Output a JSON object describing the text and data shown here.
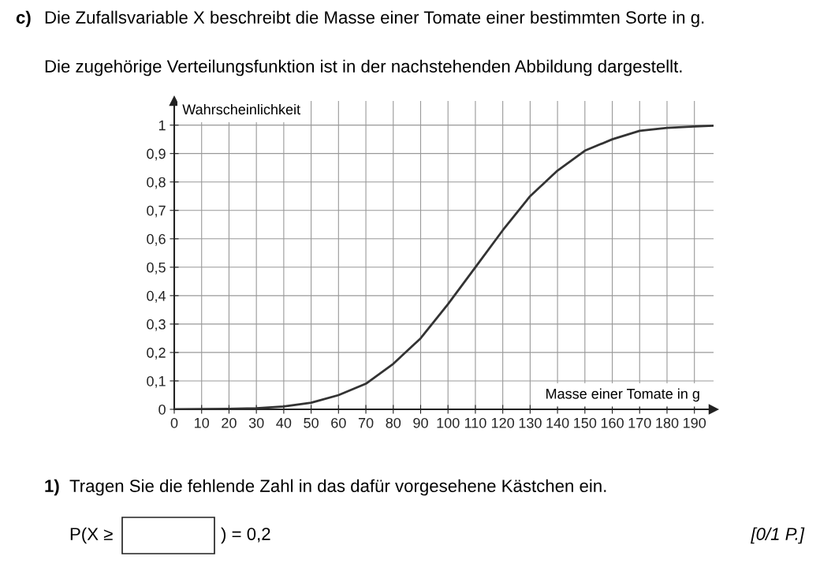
{
  "chart_data": {
    "type": "line",
    "xlabel": "Masse einer Tomate in g",
    "ylabel": "Wahrscheinlichkeit",
    "x": [
      0,
      10,
      20,
      30,
      40,
      50,
      60,
      70,
      80,
      90,
      100,
      110,
      120,
      130,
      140,
      150,
      160,
      170,
      180,
      190,
      197
    ],
    "series": [
      {
        "color": "#333333",
        "values": [
          0,
          0.001,
          0.002,
          0.004,
          0.01,
          0.023,
          0.05,
          0.09,
          0.16,
          0.25,
          0.37,
          0.5,
          0.63,
          0.75,
          0.84,
          0.91,
          0.95,
          0.98,
          0.99,
          0.995,
          0.998
        ]
      }
    ],
    "xlim": [
      0,
      197
    ],
    "ylim": [
      0,
      1.085
    ],
    "xticks": [
      0,
      10,
      20,
      30,
      40,
      50,
      60,
      70,
      80,
      90,
      100,
      110,
      120,
      130,
      140,
      150,
      160,
      170,
      180,
      190
    ],
    "yticks": [
      0,
      {
        "value": 0.1,
        "label": "0,1"
      },
      {
        "value": 0.2,
        "label": "0,2"
      },
      {
        "value": 0.3,
        "label": "0,3"
      },
      {
        "value": 0.4,
        "label": "0,4"
      },
      {
        "value": 0.5,
        "label": "0,5"
      },
      {
        "value": 0.6,
        "label": "0,6"
      },
      {
        "value": 0.7,
        "label": "0,7"
      },
      {
        "value": 0.8,
        "label": "0,8"
      },
      {
        "value": 0.9,
        "label": "0,9"
      },
      1
    ],
    "grid": true,
    "marker": "none",
    "line_style": "solid",
    "legend": false,
    "annotations": [
      "c)",
      "Die Zufallsvariable X beschreibt die Masse einer Tomate einer bestimmten Sorte in g.",
      "Die zugehörige Verteilungsfunktion ist in der nachstehenden Abbildung dargestellt.",
      "1)",
      "Tragen Sie die fehlende Zahl in das dafür vorgesehene Kästchen ein.",
      "P(X ≥",
      ") = 0,2",
      "[0/1 P.]"
    ]
  }
}
